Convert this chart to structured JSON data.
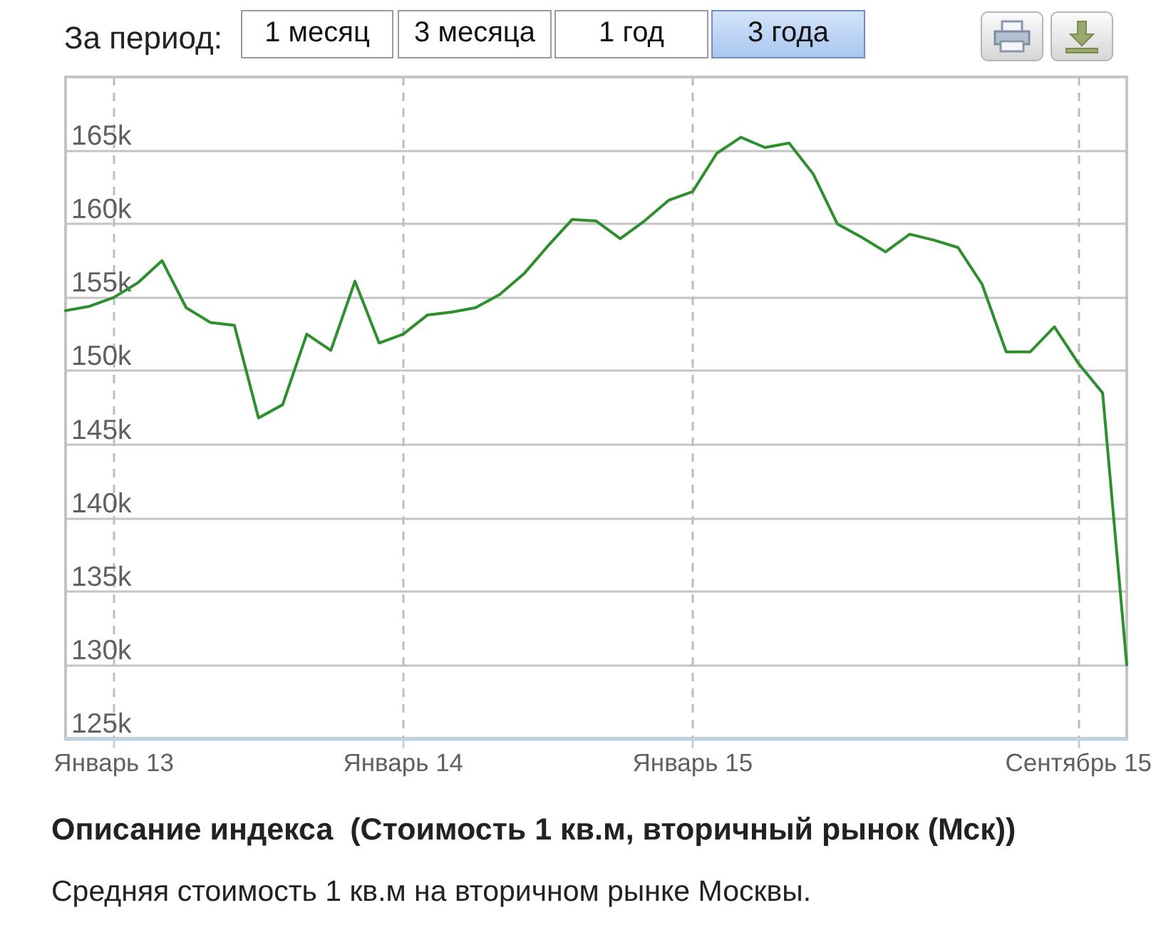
{
  "chart_data": {
    "type": "line",
    "title": "Описание индекса  (Стоимость 1 кв.м, вторичный рынок (Мск))",
    "subtitle": "Средняя стоимость 1 кв.м на вторичном рынке Москвы.",
    "annotations": [
      "За период:",
      "1 месяц",
      "3 месяца",
      "1 год",
      "3 года"
    ],
    "categories": [
      null,
      null,
      "Январь 13",
      null,
      null,
      null,
      null,
      null,
      null,
      null,
      null,
      null,
      null,
      null,
      "Январь 14",
      null,
      null,
      null,
      null,
      null,
      null,
      null,
      null,
      null,
      null,
      null,
      "Январь 15",
      null,
      null,
      null,
      null,
      null,
      null,
      null,
      null,
      null,
      null,
      null,
      null,
      null,
      null,
      null,
      "Сентябрь 15",
      null,
      null
    ],
    "values": [
      154100,
      154400,
      155000,
      156000,
      157500,
      154300,
      153300,
      153100,
      146800,
      147700,
      152500,
      151400,
      156100,
      151900,
      152500,
      153800,
      154000,
      154300,
      155200,
      156600,
      158500,
      160300,
      160200,
      159000,
      160200,
      161600,
      162200,
      164800,
      165900,
      165200,
      165500,
      163400,
      160000,
      159100,
      158100,
      159300,
      158900,
      158400,
      155900,
      151300,
      151300,
      153000,
      150500,
      148500,
      130000
    ],
    "color": "#2f8f2f",
    "ylim": [
      125000,
      170000
    ],
    "yticks": [
      {
        "value": 125000,
        "label": "125k"
      },
      {
        "value": 130000,
        "label": "130k"
      },
      {
        "value": 135000,
        "label": "135k"
      },
      {
        "value": 140000,
        "label": "140k"
      },
      {
        "value": 145000,
        "label": "145k"
      },
      {
        "value": 150000,
        "label": "150k"
      },
      {
        "value": 155000,
        "label": "155k"
      },
      {
        "value": 160000,
        "label": "160k"
      },
      {
        "value": 165000,
        "label": "165k"
      }
    ],
    "grid": true,
    "marker": "none",
    "line_style": "solid"
  }
}
